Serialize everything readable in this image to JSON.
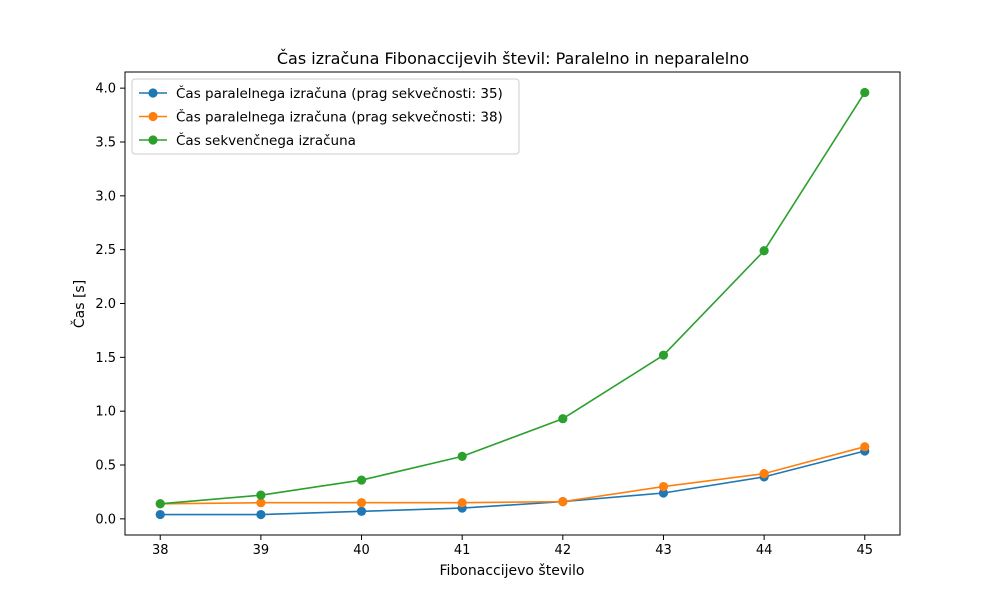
{
  "chart_data": {
    "type": "line",
    "title": "Čas izračuna Fibonaccijevih števil: Paralelno in neparalelno",
    "xlabel": "Fibonaccijevo število",
    "ylabel": "Čas [s]",
    "x": [
      38,
      39,
      40,
      41,
      42,
      43,
      44,
      45
    ],
    "x_ticks": [
      "38",
      "39",
      "40",
      "41",
      "42",
      "43",
      "44",
      "45"
    ],
    "xlim": [
      37.65,
      45.35
    ],
    "y_ticks": [
      "0.0",
      "0.5",
      "1.0",
      "1.5",
      "2.0",
      "2.5",
      "3.0",
      "3.5",
      "4.0"
    ],
    "ylim": [
      -0.15,
      4.15
    ],
    "grid": false,
    "legend_position": "upper left",
    "series": [
      {
        "name": "Čas paralelnega izračuna (prag sekvečnosti: 35)",
        "color": "#1f77b4",
        "values": [
          0.04,
          0.04,
          0.07,
          0.1,
          0.16,
          0.24,
          0.39,
          0.63
        ]
      },
      {
        "name": "Čas paralelnega izračuna (prag sekvečnosti: 38)",
        "color": "#ff7f0e",
        "values": [
          0.14,
          0.15,
          0.15,
          0.15,
          0.16,
          0.3,
          0.42,
          0.67
        ]
      },
      {
        "name": "Čas sekvenčnega izračuna",
        "color": "#2ca02c",
        "values": [
          0.14,
          0.22,
          0.36,
          0.58,
          0.93,
          1.52,
          2.49,
          3.96
        ]
      }
    ]
  }
}
